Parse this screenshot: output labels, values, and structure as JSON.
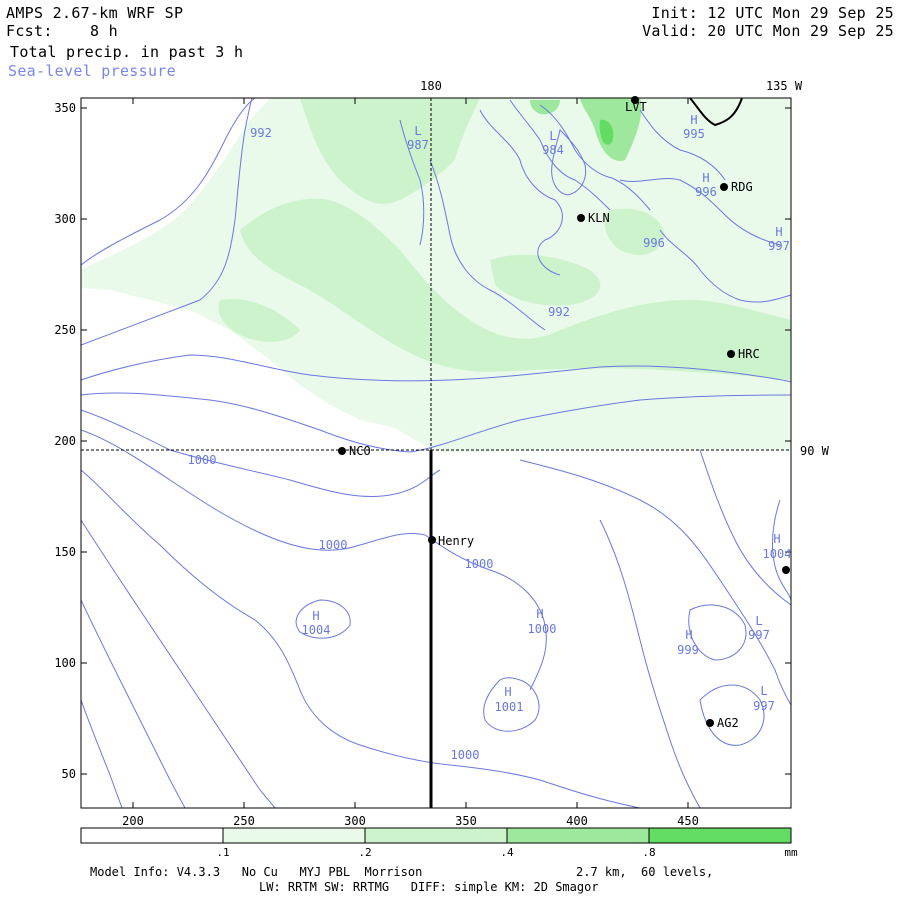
{
  "header": {
    "model": "AMPS 2.67-km WRF SP",
    "init": "Init: 12 UTC Mon 29 Sep 25",
    "fcst_label": "Fcst:",
    "fcst_value": "8 h",
    "valid": "Valid: 20 UTC Mon 29 Sep 25",
    "field": "Total precip. in past 3 h",
    "overlay": "Sea-level pressure"
  },
  "map": {
    "x_ticks": [
      "200",
      "250",
      "300",
      "350",
      "400",
      "450"
    ],
    "y_ticks": [
      "350",
      "300",
      "250",
      "200",
      "150",
      "100",
      "50"
    ],
    "meridian_labels": {
      "top_180": "180",
      "top_135w": "135 W",
      "right_90w": "90 W"
    },
    "stations": [
      {
        "id": "LVT",
        "label": "LVT"
      },
      {
        "id": "RDG",
        "label": "RDG"
      },
      {
        "id": "KLN",
        "label": "KLN"
      },
      {
        "id": "HRC",
        "label": "HRC"
      },
      {
        "id": "NCO",
        "label": "NCO"
      },
      {
        "id": "Henry",
        "label": "Henry"
      },
      {
        "id": "AG2",
        "label": "AG2"
      }
    ],
    "pressure_labels": [
      {
        "text": "992"
      },
      {
        "text": "L"
      },
      {
        "text": "987"
      },
      {
        "text": "L"
      },
      {
        "text": "984"
      },
      {
        "text": "H"
      },
      {
        "text": "995"
      },
      {
        "text": "H"
      },
      {
        "text": "996"
      },
      {
        "text": "996"
      },
      {
        "text": "H"
      },
      {
        "text": "997"
      },
      {
        "text": "992"
      },
      {
        "text": "1000"
      },
      {
        "text": "1000"
      },
      {
        "text": "1000"
      },
      {
        "text": "H"
      },
      {
        "text": "1004"
      },
      {
        "text": "H"
      },
      {
        "text": "1000"
      },
      {
        "text": "H"
      },
      {
        "text": "999"
      },
      {
        "text": "L"
      },
      {
        "text": "997"
      },
      {
        "text": "H"
      },
      {
        "text": "1001"
      },
      {
        "text": "L"
      },
      {
        "text": "997"
      },
      {
        "text": "1000"
      },
      {
        "text": "H"
      },
      {
        "text": "1004"
      }
    ],
    "colors": {
      "isobar": "#6a78e0",
      "precip_lightest": "#eafaea",
      "precip_light": "#cdf3cd",
      "precip_medium": "#9ee89e",
      "precip_heavy": "#63dc63"
    }
  },
  "colorbar": {
    "ticks": [
      ".1",
      ".2",
      ".4",
      ".8"
    ],
    "unit": "mm",
    "colors": [
      "#ffffff",
      "#eafaea",
      "#cdf3cd",
      "#9ee89e",
      "#63dc63"
    ]
  },
  "footer": {
    "line1": "Model Info: V4.3.3   No Cu   MYJ PBL  Morrison",
    "line1_right": "2.7 km,  60 levels,",
    "line2": "LW: RRTM SW: RRTMG   DIFF: simple KM: 2D Smagor"
  }
}
